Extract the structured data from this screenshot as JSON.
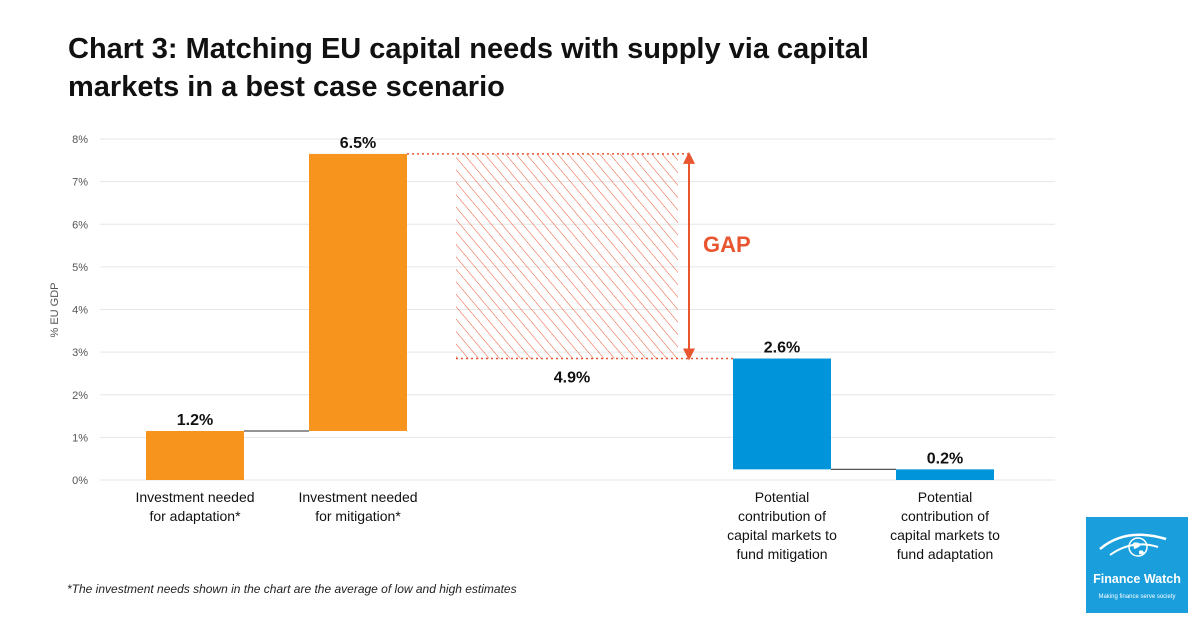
{
  "title_line1": "Chart 3: Matching EU capital needs with supply via capital",
  "title_line2": "markets in a best case scenario",
  "footnote": "*The investment needs shown in the chart are the average of low and high estimates",
  "logo": {
    "name": "Finance Watch",
    "tagline": "Making finance serve society",
    "icon": "globe-bird-icon"
  },
  "colors": {
    "orange": "#f7941d",
    "blue": "#0095da",
    "gap": "#e8552f",
    "grid": "#e6e6e6"
  },
  "chart_data": {
    "type": "bar",
    "variant": "waterfall",
    "ylabel": "% EU GDP",
    "ylim": [
      0,
      8
    ],
    "yticks": [
      "0%",
      "1%",
      "2%",
      "3%",
      "4%",
      "5%",
      "6%",
      "7%",
      "8%"
    ],
    "grid": true,
    "bars": [
      {
        "category": [
          "Investment needed",
          "for adaptation*"
        ],
        "value": 1.2,
        "label": "1.2%",
        "base": 0,
        "top": 1.15,
        "color": "orange"
      },
      {
        "category": [
          "Investment needed",
          "for mitigation*"
        ],
        "value": 6.5,
        "label": "6.5%",
        "base": 1.15,
        "top": 7.65,
        "color": "orange"
      },
      {
        "category": [
          "Potential",
          "contribution of",
          "capital markets to",
          "fund mitigation"
        ],
        "value": 2.6,
        "label": "2.6%",
        "base": 0.25,
        "top": 2.85,
        "color": "blue"
      },
      {
        "category": [
          "Potential",
          "contribution of",
          "capital markets to",
          "fund adaptation"
        ],
        "value": 0.2,
        "label": "0.2%",
        "base": 0,
        "top": 0.25,
        "color": "blue"
      }
    ],
    "gap": {
      "label": "GAP",
      "value": 4.9,
      "value_label": "4.9%",
      "from": 2.85,
      "to": 7.65
    }
  }
}
